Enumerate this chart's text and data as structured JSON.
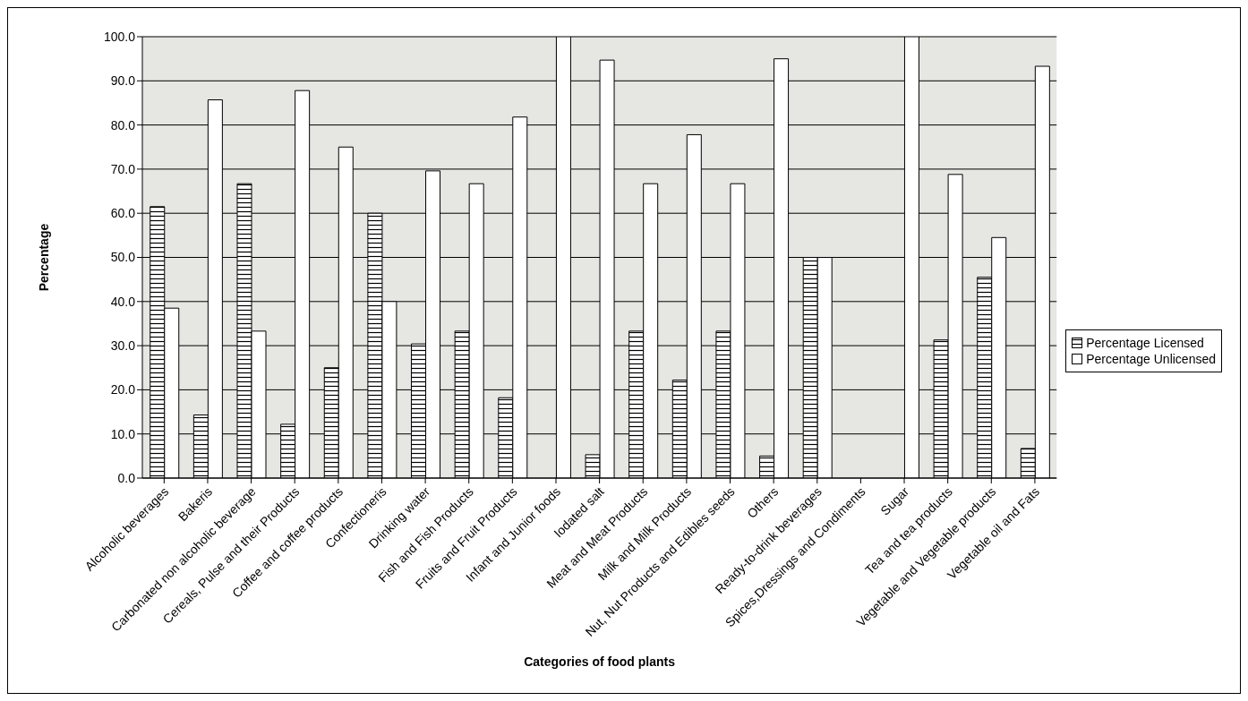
{
  "chart_data": {
    "type": "bar",
    "xlabel": "Categories of food plants",
    "ylabel": "Percentage",
    "categories": [
      "Alcoholic beverages",
      "Bakeris",
      "Carbonated non alcoholic beverage",
      "Cereals, Pulse and their Products",
      "Coffee and coffee products",
      "Confectioneris",
      "Drinking water",
      "Fish and Fish Products",
      "Fruits and Fruit Products",
      "Infant and Junior foods",
      "Iodated salt",
      "Meat and Meat Products",
      "Milk and Milk Products",
      "Nut, Nut Products and Edibles seeds",
      "Others",
      "Ready-to-drink beverages",
      "Spices,Dressings and Condiments",
      "Sugar",
      "Tea and tea products",
      "Vegetable and Vegetable products",
      "Vegetable oil and Fats"
    ],
    "series": [
      {
        "name": "Percentage Licensed",
        "color": "#000000",
        "values": [
          61.5,
          14.3,
          66.7,
          12.2,
          25.0,
          60.0,
          30.4,
          33.3,
          18.2,
          0,
          5.3,
          33.3,
          22.2,
          33.3,
          5.0,
          50.0,
          null,
          0,
          31.3,
          45.5,
          6.7
        ]
      },
      {
        "name": "Percentage Unlicensed",
        "color": "#ffffff",
        "values": [
          38.5,
          85.7,
          33.3,
          87.8,
          75.0,
          40.0,
          69.6,
          66.7,
          81.8,
          100,
          94.7,
          66.7,
          77.8,
          66.7,
          95.0,
          50.0,
          null,
          100,
          68.8,
          54.5,
          93.3
        ]
      }
    ],
    "ylim": [
      0,
      100
    ],
    "yticks": [
      {
        "value": 0,
        "label": "0.0"
      },
      {
        "value": 10,
        "label": "10.0"
      },
      {
        "value": 20,
        "label": "20.0"
      },
      {
        "value": 30,
        "label": "30.0"
      },
      {
        "value": 40,
        "label": "40.0"
      },
      {
        "value": 50,
        "label": "50.0"
      },
      {
        "value": 60,
        "label": "60.0"
      },
      {
        "value": 70,
        "label": "70.0"
      },
      {
        "value": 80,
        "label": "80.0"
      },
      {
        "value": 90,
        "label": "90.0"
      },
      {
        "value": 100,
        "label": "100.0"
      }
    ],
    "grid": "y",
    "legend": "right"
  }
}
